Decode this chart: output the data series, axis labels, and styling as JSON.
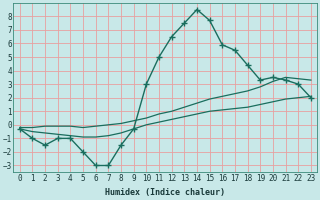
{
  "xlabel": "Humidex (Indice chaleur)",
  "ylabel": "",
  "background_color": "#c8e8e8",
  "grid_color": "#e8a0a0",
  "line_color": "#1a6e5e",
  "xlim": [
    -0.5,
    23.5
  ],
  "ylim": [
    -3.5,
    9.0
  ],
  "xticks": [
    0,
    1,
    2,
    3,
    4,
    5,
    6,
    7,
    8,
    9,
    10,
    11,
    12,
    13,
    14,
    15,
    16,
    17,
    18,
    19,
    20,
    21,
    22,
    23
  ],
  "yticks": [
    -3,
    -2,
    -1,
    0,
    1,
    2,
    3,
    4,
    5,
    6,
    7,
    8
  ],
  "curve1_x": [
    0,
    1,
    2,
    3,
    4,
    5,
    6,
    7,
    8,
    9,
    10,
    11,
    12,
    13,
    14,
    15,
    16,
    17,
    18,
    19,
    20,
    21,
    22,
    23
  ],
  "curve1_y": [
    -0.3,
    -1.0,
    -1.5,
    -1.0,
    -1.0,
    -2.0,
    -3.0,
    -3.0,
    -1.5,
    -0.3,
    3.0,
    5.0,
    6.5,
    7.5,
    8.5,
    7.7,
    5.9,
    5.5,
    4.4,
    3.3,
    3.5,
    3.3,
    3.0,
    2.0
  ],
  "curve2_x": [
    0,
    1,
    2,
    3,
    4,
    5,
    6,
    7,
    8,
    9,
    10,
    11,
    12,
    13,
    14,
    15,
    16,
    17,
    18,
    19,
    20,
    21,
    22,
    23
  ],
  "curve2_y": [
    -0.2,
    -0.2,
    -0.1,
    -0.1,
    -0.1,
    -0.2,
    -0.1,
    0.0,
    0.1,
    0.3,
    0.5,
    0.8,
    1.0,
    1.3,
    1.6,
    1.9,
    2.1,
    2.3,
    2.5,
    2.8,
    3.2,
    3.5,
    3.4,
    3.3
  ],
  "curve3_x": [
    0,
    1,
    2,
    3,
    4,
    5,
    6,
    7,
    8,
    9,
    10,
    11,
    12,
    13,
    14,
    15,
    16,
    17,
    18,
    19,
    20,
    21,
    22,
    23
  ],
  "curve3_y": [
    -0.3,
    -0.5,
    -0.6,
    -0.7,
    -0.8,
    -0.9,
    -0.9,
    -0.8,
    -0.6,
    -0.3,
    0.0,
    0.2,
    0.4,
    0.6,
    0.8,
    1.0,
    1.1,
    1.2,
    1.3,
    1.5,
    1.7,
    1.9,
    2.0,
    2.1
  ]
}
